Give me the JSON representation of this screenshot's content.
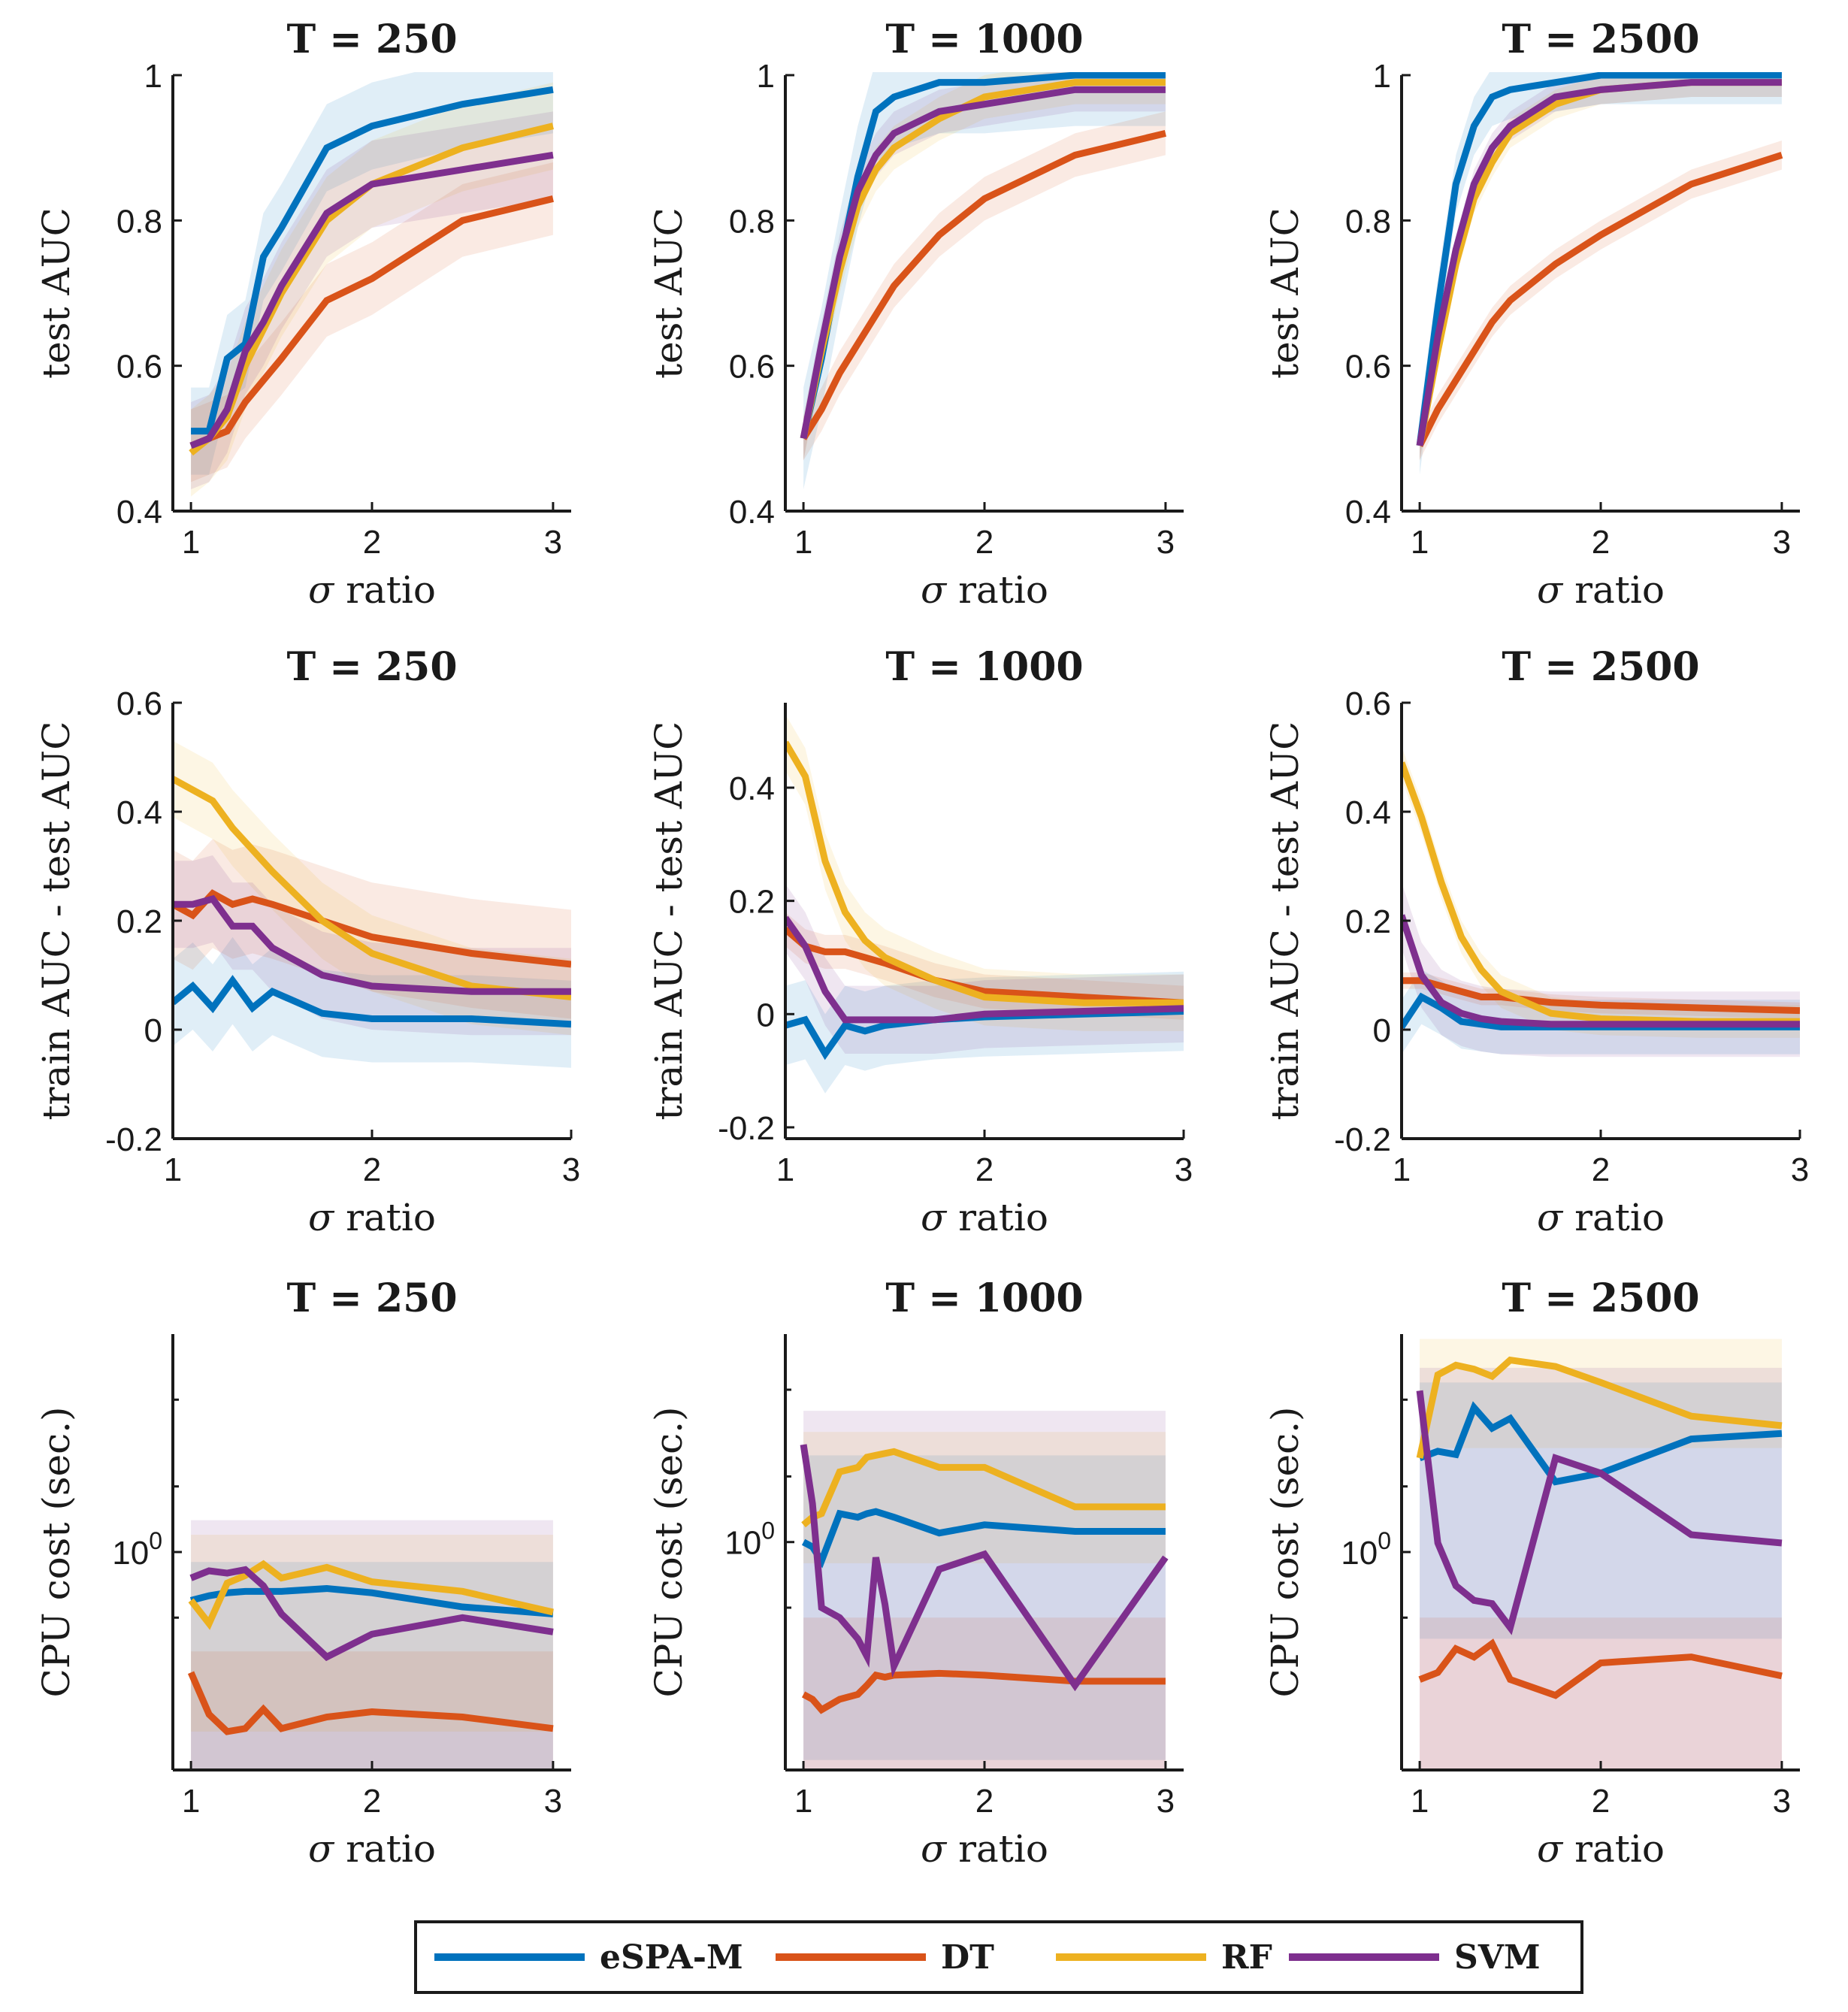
{
  "colors": {
    "eSPA-M": "#0072BD",
    "DT": "#D95319",
    "RF": "#EDB120",
    "SVM": "#7E2F8E"
  },
  "legend": {
    "items": [
      "eSPA-M",
      "DT",
      "RF",
      "SVM"
    ]
  },
  "chart_data": [
    {
      "type": "line",
      "title": "T = 250",
      "xlabel": "σ ratio",
      "ylabel": "test AUC",
      "xlim": [
        0.9,
        3.1
      ],
      "ylim": [
        0.4,
        1
      ],
      "xticks": [
        1,
        2,
        3
      ],
      "yticks": [
        0.4,
        0.6,
        0.8,
        1
      ],
      "ytick_labels": [
        "0.4",
        "0.6",
        "0.8",
        "1"
      ],
      "x": [
        1,
        1.1,
        1.2,
        1.3,
        1.4,
        1.5,
        1.75,
        2,
        2.5,
        3
      ],
      "series": [
        {
          "name": "eSPA-M",
          "values": [
            0.51,
            0.51,
            0.61,
            0.63,
            0.75,
            0.79,
            0.9,
            0.93,
            0.96,
            0.98
          ],
          "band": 0.06
        },
        {
          "name": "DT",
          "values": [
            0.49,
            0.5,
            0.51,
            0.55,
            0.58,
            0.61,
            0.69,
            0.72,
            0.8,
            0.83
          ],
          "band": 0.05
        },
        {
          "name": "RF",
          "values": [
            0.48,
            0.5,
            0.53,
            0.6,
            0.65,
            0.7,
            0.8,
            0.85,
            0.9,
            0.93
          ],
          "band": 0.06
        },
        {
          "name": "SVM",
          "values": [
            0.49,
            0.5,
            0.54,
            0.62,
            0.66,
            0.71,
            0.81,
            0.85,
            0.87,
            0.89
          ],
          "band": 0.06
        }
      ]
    },
    {
      "type": "line",
      "title": "T = 1000",
      "xlabel": "σ ratio",
      "ylabel": "test AUC",
      "xlim": [
        0.9,
        3.1
      ],
      "ylim": [
        0.4,
        1
      ],
      "xticks": [
        1,
        2,
        3
      ],
      "yticks": [
        0.4,
        0.6,
        0.8,
        1
      ],
      "ytick_labels": [
        "0.4",
        "0.6",
        "0.8",
        "1"
      ],
      "x": [
        1,
        1.1,
        1.2,
        1.3,
        1.4,
        1.5,
        1.75,
        2,
        2.5,
        3
      ],
      "series": [
        {
          "name": "eSPA-M",
          "values": [
            0.5,
            0.61,
            0.74,
            0.86,
            0.95,
            0.97,
            0.99,
            0.99,
            1.0,
            1.0
          ],
          "band": 0.07
        },
        {
          "name": "DT",
          "values": [
            0.5,
            0.54,
            0.59,
            0.63,
            0.67,
            0.71,
            0.78,
            0.83,
            0.89,
            0.92
          ],
          "band": 0.03
        },
        {
          "name": "RF",
          "values": [
            0.5,
            0.62,
            0.73,
            0.82,
            0.87,
            0.9,
            0.94,
            0.97,
            0.99,
            0.99
          ],
          "band": 0.03
        },
        {
          "name": "SVM",
          "values": [
            0.5,
            0.63,
            0.75,
            0.84,
            0.89,
            0.92,
            0.95,
            0.96,
            0.98,
            0.98
          ],
          "band": 0.03
        }
      ]
    },
    {
      "type": "line",
      "title": "T = 2500",
      "xlabel": "σ ratio",
      "ylabel": "test AUC",
      "xlim": [
        0.9,
        3.1
      ],
      "ylim": [
        0.4,
        1
      ],
      "xticks": [
        1,
        2,
        3
      ],
      "yticks": [
        0.4,
        0.6,
        0.8,
        1
      ],
      "ytick_labels": [
        "0.4",
        "0.6",
        "0.8",
        "1"
      ],
      "x": [
        1,
        1.1,
        1.2,
        1.3,
        1.4,
        1.5,
        1.75,
        2,
        2.5,
        3
      ],
      "series": [
        {
          "name": "eSPA-M",
          "values": [
            0.49,
            0.68,
            0.85,
            0.93,
            0.97,
            0.98,
            0.99,
            1.0,
            1.0,
            1.0
          ],
          "band": 0.04
        },
        {
          "name": "DT",
          "values": [
            0.49,
            0.54,
            0.58,
            0.62,
            0.66,
            0.69,
            0.74,
            0.78,
            0.85,
            0.89
          ],
          "band": 0.02
        },
        {
          "name": "RF",
          "values": [
            0.49,
            0.62,
            0.74,
            0.83,
            0.88,
            0.92,
            0.96,
            0.98,
            0.99,
            0.99
          ],
          "band": 0.02
        },
        {
          "name": "SVM",
          "values": [
            0.49,
            0.64,
            0.76,
            0.85,
            0.9,
            0.93,
            0.97,
            0.98,
            0.99,
            0.99
          ],
          "band": 0.02
        }
      ]
    },
    {
      "type": "line",
      "title": "T = 250",
      "xlabel": "σ ratio",
      "ylabel": "train AUC - test AUC",
      "xlim": [
        1,
        3
      ],
      "ylim": [
        -0.2,
        0.6
      ],
      "xticks": [
        1,
        2,
        3
      ],
      "yticks": [
        -0.2,
        0,
        0.2,
        0.4,
        0.6
      ],
      "ytick_labels": [
        "-0.2",
        "0",
        "0.2",
        "0.4",
        "0.6"
      ],
      "x": [
        1,
        1.1,
        1.2,
        1.3,
        1.4,
        1.5,
        1.75,
        2,
        2.5,
        3
      ],
      "series": [
        {
          "name": "eSPA-M",
          "values": [
            0.05,
            0.08,
            0.04,
            0.09,
            0.04,
            0.07,
            0.03,
            0.02,
            0.02,
            0.01
          ],
          "band": 0.08
        },
        {
          "name": "DT",
          "values": [
            0.23,
            0.21,
            0.25,
            0.23,
            0.24,
            0.23,
            0.2,
            0.17,
            0.14,
            0.12
          ],
          "band": 0.1
        },
        {
          "name": "RF",
          "values": [
            0.46,
            0.44,
            0.42,
            0.37,
            0.33,
            0.29,
            0.2,
            0.14,
            0.08,
            0.06
          ],
          "band": 0.07
        },
        {
          "name": "SVM",
          "values": [
            0.23,
            0.23,
            0.24,
            0.19,
            0.19,
            0.15,
            0.1,
            0.08,
            0.07,
            0.07
          ],
          "band": 0.08
        }
      ]
    },
    {
      "type": "line",
      "title": "T = 1000",
      "xlabel": "σ ratio",
      "ylabel": "train AUC - test AUC",
      "xlim": [
        1,
        3
      ],
      "ylim": [
        -0.22,
        0.55
      ],
      "xticks": [
        1,
        2,
        3
      ],
      "yticks": [
        -0.2,
        0,
        0.2,
        0.4
      ],
      "ytick_labels": [
        "-0.2",
        "0",
        "0.2",
        "0.4"
      ],
      "x": [
        1,
        1.1,
        1.2,
        1.3,
        1.4,
        1.5,
        1.75,
        2,
        2.5,
        3
      ],
      "series": [
        {
          "name": "eSPA-M",
          "values": [
            -0.02,
            -0.01,
            -0.07,
            -0.02,
            -0.03,
            -0.02,
            -0.01,
            -0.005,
            0,
            0.005
          ],
          "band": 0.07
        },
        {
          "name": "DT",
          "values": [
            0.15,
            0.12,
            0.11,
            0.11,
            0.1,
            0.09,
            0.06,
            0.04,
            0.03,
            0.02
          ],
          "band": 0.03
        },
        {
          "name": "RF",
          "values": [
            0.48,
            0.42,
            0.27,
            0.18,
            0.13,
            0.1,
            0.06,
            0.03,
            0.02,
            0.02
          ],
          "band": 0.05
        },
        {
          "name": "SVM",
          "values": [
            0.17,
            0.12,
            0.04,
            -0.01,
            -0.01,
            -0.01,
            -0.01,
            0,
            0.005,
            0.01
          ],
          "band": 0.06
        }
      ]
    },
    {
      "type": "line",
      "title": "T = 2500",
      "xlabel": "σ ratio",
      "ylabel": "train AUC - test AUC",
      "xlim": [
        1,
        3
      ],
      "ylim": [
        -0.2,
        0.6
      ],
      "xticks": [
        1,
        2,
        3
      ],
      "yticks": [
        -0.2,
        0,
        0.2,
        0.4,
        0.6
      ],
      "ytick_labels": [
        "-0.2",
        "0",
        "0.2",
        "0.4",
        "0.6"
      ],
      "x": [
        1,
        1.1,
        1.2,
        1.3,
        1.4,
        1.5,
        1.75,
        2,
        2.5,
        3
      ],
      "series": [
        {
          "name": "eSPA-M",
          "values": [
            0.005,
            0.06,
            0.04,
            0.015,
            0.01,
            0.005,
            0.005,
            0.005,
            0.005,
            0.005
          ],
          "band": 0.05
        },
        {
          "name": "DT",
          "values": [
            0.09,
            0.09,
            0.08,
            0.07,
            0.06,
            0.06,
            0.05,
            0.045,
            0.04,
            0.035
          ],
          "band": 0.015
        },
        {
          "name": "RF",
          "values": [
            0.49,
            0.39,
            0.27,
            0.17,
            0.11,
            0.07,
            0.03,
            0.02,
            0.015,
            0.015
          ],
          "band": 0.03
        },
        {
          "name": "SVM",
          "values": [
            0.21,
            0.1,
            0.05,
            0.03,
            0.02,
            0.015,
            0.01,
            0.01,
            0.01,
            0.01
          ],
          "band": 0.06
        }
      ]
    },
    {
      "type": "line",
      "yscale": "log",
      "title": "T = 250",
      "xlabel": "σ ratio",
      "ylabel": "CPU cost (sec.)",
      "xlim": [
        0.9,
        3.1
      ],
      "ylim": [
        0.1,
        10
      ],
      "xticks": [
        1,
        2,
        3
      ],
      "yticks": [
        1
      ],
      "yminor": [
        0.5,
        2,
        5
      ],
      "ytick_labels": [
        "10^0"
      ],
      "x": [
        1,
        1.1,
        1.2,
        1.3,
        1.4,
        1.5,
        1.75,
        2,
        2.5,
        3
      ],
      "series": [
        {
          "name": "eSPA-M",
          "values": [
            0.6,
            0.63,
            0.65,
            0.66,
            0.66,
            0.66,
            0.68,
            0.65,
            0.56,
            0.52
          ],
          "band_lo": 0.1,
          "band_hi": 0.9
        },
        {
          "name": "DT",
          "values": [
            0.28,
            0.18,
            0.15,
            0.155,
            0.19,
            0.155,
            0.175,
            0.185,
            0.175,
            0.155
          ],
          "band_lo": 0.1,
          "band_hi": 0.35
        },
        {
          "name": "RF",
          "values": [
            0.6,
            0.47,
            0.72,
            0.78,
            0.88,
            0.76,
            0.85,
            0.73,
            0.66,
            0.53
          ],
          "band_lo": 0.15,
          "band_hi": 1.2
        },
        {
          "name": "SVM",
          "values": [
            0.76,
            0.82,
            0.8,
            0.83,
            0.7,
            0.52,
            0.33,
            0.42,
            0.5,
            0.43
          ],
          "band_lo": 0.1,
          "band_hi": 1.4
        }
      ]
    },
    {
      "type": "line",
      "yscale": "log",
      "title": "T = 1000",
      "xlabel": "σ ratio",
      "ylabel": "CPU cost (sec.)",
      "xlim": [
        0.9,
        3.1
      ],
      "ylim": [
        0.09,
        9
      ],
      "xticks": [
        1,
        2,
        3
      ],
      "yticks": [
        1
      ],
      "yminor": [
        0.5,
        2,
        5
      ],
      "ytick_labels": [
        "10^0"
      ],
      "x": [
        1,
        1.05,
        1.1,
        1.2,
        1.3,
        1.35,
        1.4,
        1.45,
        1.5,
        1.75,
        2,
        2.5,
        3
      ],
      "series": [
        {
          "name": "eSPA-M",
          "values": [
            1.0,
            0.95,
            0.82,
            1.35,
            1.3,
            1.35,
            1.38,
            1.34,
            1.3,
            1.1,
            1.2,
            1.12,
            1.12
          ],
          "band_lo": 0.1,
          "band_hi": 2.5
        },
        {
          "name": "DT",
          "values": [
            0.2,
            0.19,
            0.17,
            0.19,
            0.2,
            0.22,
            0.245,
            0.24,
            0.245,
            0.25,
            0.245,
            0.23,
            0.23
          ],
          "band_lo": 0.09,
          "band_hi": 0.45
        },
        {
          "name": "RF",
          "values": [
            1.2,
            1.3,
            1.35,
            2.1,
            2.2,
            2.45,
            2.5,
            2.55,
            2.6,
            2.2,
            2.2,
            1.45,
            1.45
          ],
          "band_lo": 0.8,
          "band_hi": 3.2
        },
        {
          "name": "SVM",
          "values": [
            2.8,
            1.5,
            0.5,
            0.45,
            0.36,
            0.3,
            0.85,
            0.52,
            0.27,
            0.75,
            0.88,
            0.22,
            0.85
          ],
          "band_lo": 0.09,
          "band_hi": 4
        }
      ]
    },
    {
      "type": "line",
      "yscale": "log",
      "title": "T = 2500",
      "xlabel": "σ ratio",
      "ylabel": "CPU cost (sec.)",
      "xlim": [
        0.9,
        3.1
      ],
      "ylim": [
        0.1,
        10
      ],
      "xticks": [
        1,
        2,
        3
      ],
      "yticks": [
        1
      ],
      "yminor": [
        0.5,
        2,
        5
      ],
      "ytick_labels": [
        "10^0"
      ],
      "x": [
        1,
        1.1,
        1.2,
        1.3,
        1.4,
        1.5,
        1.75,
        2,
        2.5,
        3
      ],
      "series": [
        {
          "name": "eSPA-M",
          "values": [
            2.7,
            2.9,
            2.8,
            4.6,
            3.7,
            4.1,
            2.1,
            2.3,
            3.3,
            3.5
          ],
          "band_lo": 0.4,
          "band_hi": 6
        },
        {
          "name": "DT",
          "values": [
            0.26,
            0.28,
            0.36,
            0.33,
            0.38,
            0.26,
            0.22,
            0.31,
            0.33,
            0.27
          ],
          "band_lo": 0.1,
          "band_hi": 0.5
        },
        {
          "name": "RF",
          "values": [
            2.7,
            6.5,
            7.2,
            6.9,
            6.4,
            7.6,
            7.1,
            6.0,
            4.2,
            3.8
          ],
          "band_lo": 3.0,
          "band_hi": 9.5
        },
        {
          "name": "SVM",
          "values": [
            5.5,
            1.1,
            0.7,
            0.6,
            0.58,
            0.45,
            2.7,
            2.3,
            1.2,
            1.1
          ],
          "band_lo": 0.1,
          "band_hi": 7
        }
      ]
    }
  ]
}
